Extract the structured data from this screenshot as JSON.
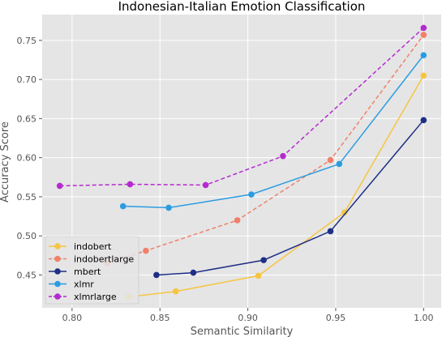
{
  "chart_data": {
    "type": "line",
    "title": "Indonesian-Italian Emotion Classification",
    "xlabel": "Semantic Similarity",
    "ylabel": "Accuracy Score",
    "xlim": [
      0.783,
      1.01
    ],
    "ylim": [
      0.408,
      0.783
    ],
    "xticks": [
      0.8,
      0.85,
      0.9,
      0.95,
      1.0
    ],
    "xtick_labels": [
      "0.80",
      "0.85",
      "0.90",
      "0.95",
      "1.00"
    ],
    "yticks": [
      0.45,
      0.5,
      0.55,
      0.6,
      0.65,
      0.7,
      0.75
    ],
    "ytick_labels": [
      "0.45",
      "0.50",
      "0.55",
      "0.60",
      "0.65",
      "0.70",
      "0.75"
    ],
    "grid": true,
    "legend_position": "lower-left",
    "series": [
      {
        "name": "indobert",
        "color": "#f5c542",
        "dashed": false,
        "x": [
          0.832,
          0.859,
          0.906,
          0.955,
          1.0
        ],
        "y": [
          0.422,
          0.429,
          0.449,
          0.53,
          0.705
        ]
      },
      {
        "name": "indobertlarge",
        "color": "#f0806a",
        "dashed": true,
        "x": [
          0.82,
          0.842,
          0.894,
          0.947,
          1.0
        ],
        "y": [
          0.465,
          0.481,
          0.52,
          0.597,
          0.757
        ]
      },
      {
        "name": "mbert",
        "color": "#1f2f86",
        "dashed": false,
        "x": [
          0.848,
          0.869,
          0.909,
          0.947,
          1.0
        ],
        "y": [
          0.45,
          0.453,
          0.469,
          0.506,
          0.648
        ]
      },
      {
        "name": "xlmr",
        "color": "#2a9ce2",
        "dashed": false,
        "x": [
          0.829,
          0.855,
          0.902,
          0.952,
          1.0
        ],
        "y": [
          0.538,
          0.536,
          0.553,
          0.592,
          0.731
        ]
      },
      {
        "name": "xlmrlarge",
        "color": "#b52ad0",
        "dashed": true,
        "x": [
          0.793,
          0.833,
          0.876,
          0.92,
          1.0
        ],
        "y": [
          0.564,
          0.566,
          0.565,
          0.602,
          0.766
        ]
      }
    ]
  }
}
